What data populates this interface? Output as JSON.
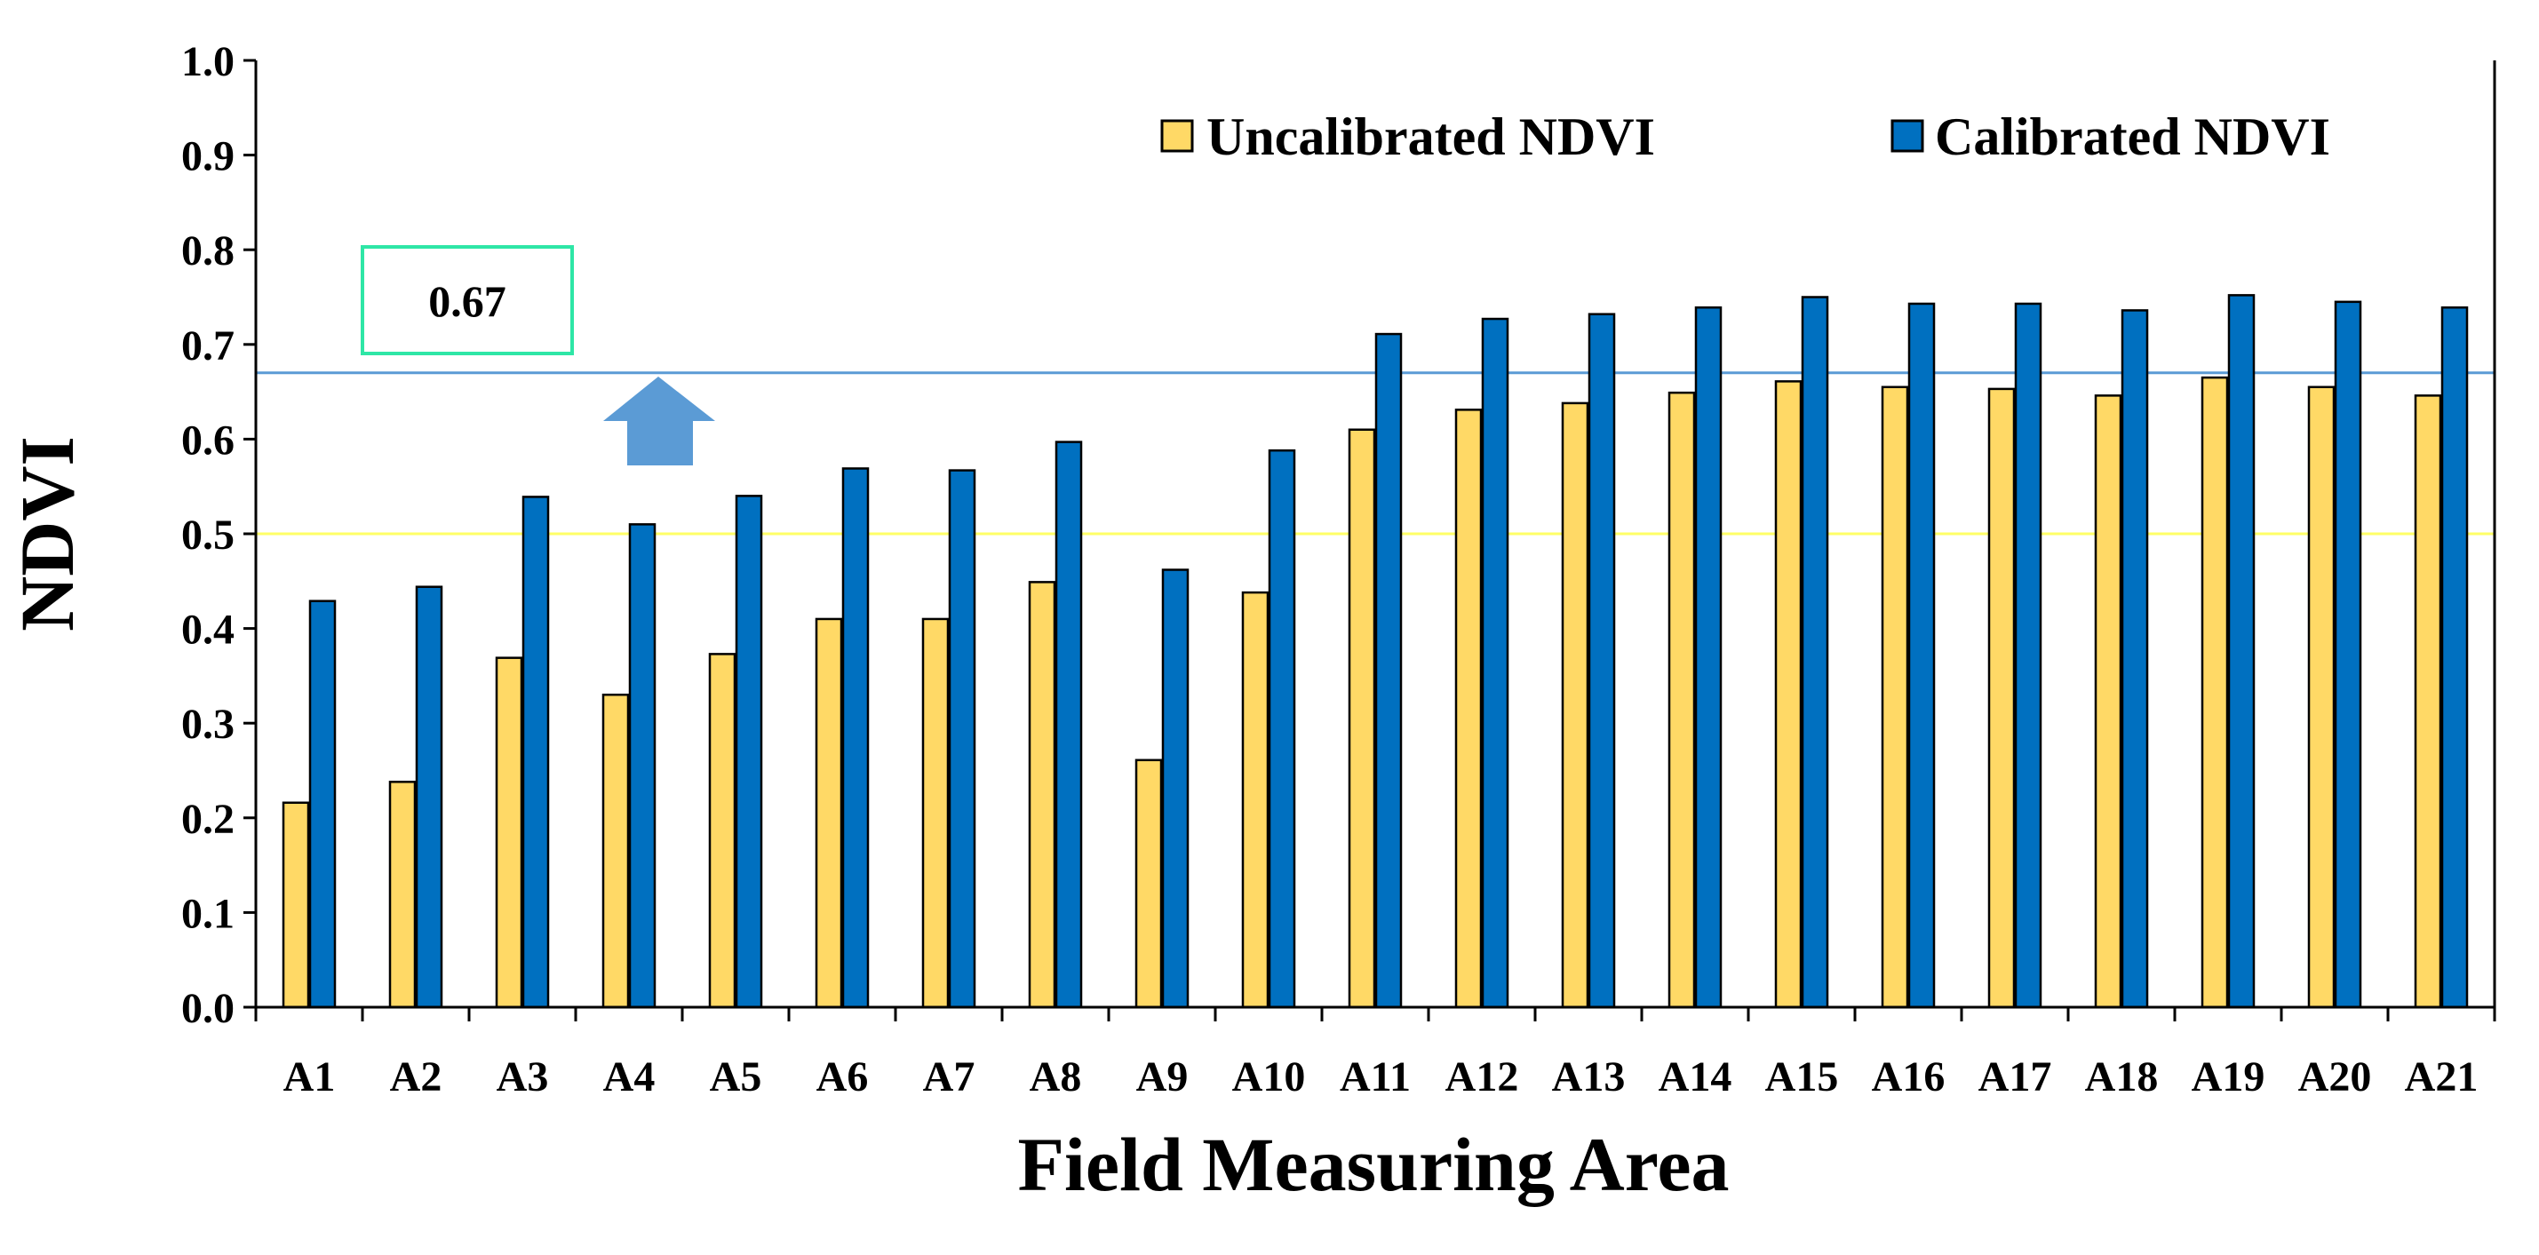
{
  "chart_data": {
    "type": "bar",
    "title": "",
    "xlabel": "Field Measuring Area",
    "ylabel": "NDVI",
    "ylim": [
      0,
      1.0
    ],
    "yticks": [
      "0.0",
      "0.1",
      "0.2",
      "0.3",
      "0.4",
      "0.5",
      "0.6",
      "0.7",
      "0.8",
      "0.9",
      "1.0"
    ],
    "grid": false,
    "legend_position": "top-right",
    "categories": [
      "A1",
      "A2",
      "A3",
      "A4",
      "A5",
      "A6",
      "A7",
      "A8",
      "A9",
      "A10",
      "A11",
      "A12",
      "A13",
      "A14",
      "A15",
      "A16",
      "A17",
      "A18",
      "A19",
      "A20",
      "A21"
    ],
    "series": [
      {
        "name": "Uncalibrated NDVI",
        "color": "#FFD966",
        "values": [
          0.216,
          0.238,
          0.369,
          0.33,
          0.373,
          0.41,
          0.41,
          0.449,
          0.261,
          0.438,
          0.61,
          0.631,
          0.638,
          0.649,
          0.661,
          0.655,
          0.653,
          0.646,
          0.665,
          0.655,
          0.646
        ]
      },
      {
        "name": "Calibrated NDVI",
        "color": "#0070C0",
        "values": [
          0.429,
          0.444,
          0.539,
          0.51,
          0.54,
          0.569,
          0.567,
          0.597,
          0.462,
          0.588,
          0.711,
          0.727,
          0.732,
          0.739,
          0.75,
          0.743,
          0.743,
          0.736,
          0.752,
          0.745,
          0.739
        ]
      }
    ],
    "reference_lines": [
      {
        "name": "upper",
        "value": 0.67,
        "color": "#5B9BD5"
      },
      {
        "name": "lower",
        "value": 0.5,
        "color": "#FFFF66"
      }
    ],
    "annotations": {
      "box_label": "0.67",
      "box_border_color": "#2EE6A6",
      "arrow_color": "#5B9BD5",
      "arrow_direction": "up"
    }
  }
}
